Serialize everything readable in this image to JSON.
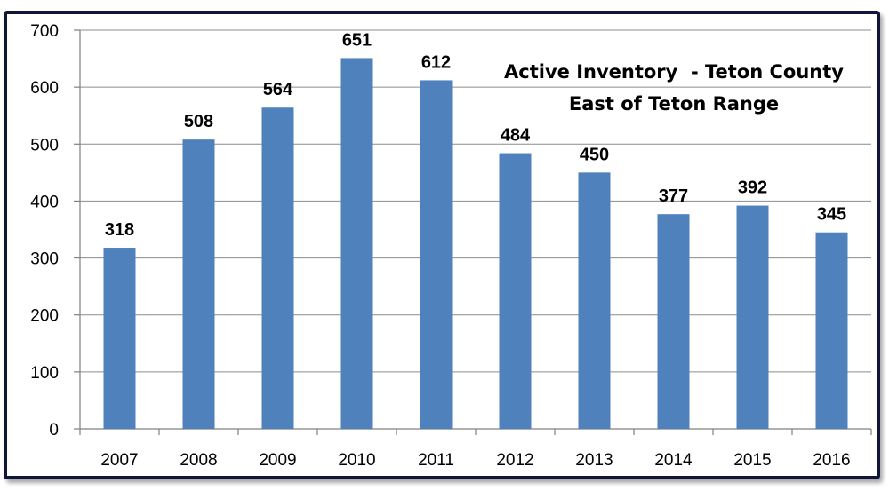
{
  "chart_data": {
    "type": "bar",
    "title": "Active Inventory  - Teton County",
    "subtitle": "East of Teton Range",
    "xlabel": "",
    "ylabel": "",
    "categories": [
      "2007",
      "2008",
      "2009",
      "2010",
      "2011",
      "2012",
      "2013",
      "2014",
      "2015",
      "2016"
    ],
    "values": [
      318,
      508,
      564,
      651,
      612,
      484,
      450,
      377,
      392,
      345
    ],
    "ylim": [
      0,
      700
    ],
    "yticks": [
      0,
      100,
      200,
      300,
      400,
      500,
      600,
      700
    ],
    "grid": true,
    "legend": "none",
    "bar_color": "#4f81bd",
    "data_labels": true
  }
}
